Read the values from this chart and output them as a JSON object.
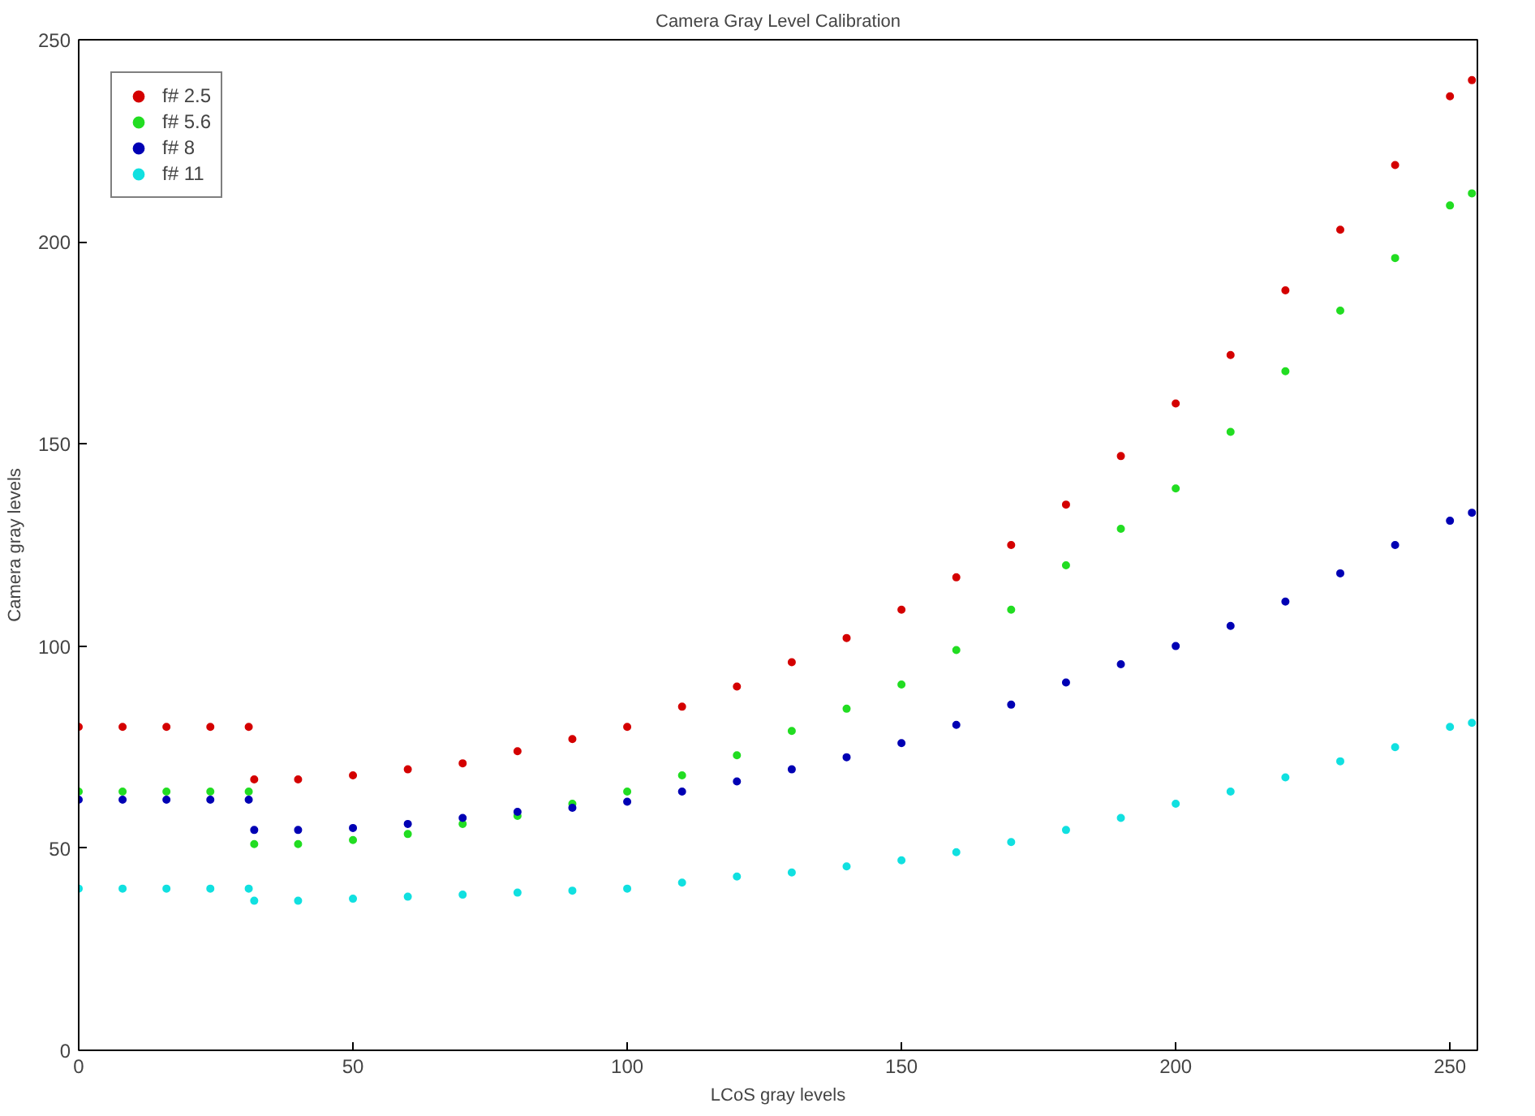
{
  "chart_data": {
    "type": "scatter",
    "title": "Camera Gray Level Calibration",
    "xlabel": "LCoS gray levels",
    "ylabel": "Camera gray levels",
    "x": [
      0,
      8,
      16,
      24,
      31,
      32,
      40,
      50,
      60,
      70,
      80,
      90,
      100,
      110,
      120,
      130,
      140,
      150,
      160,
      170,
      180,
      190,
      200,
      210,
      220,
      230,
      240,
      250,
      254
    ],
    "series": [
      {
        "name": "f# 2.5",
        "color": "#d40000",
        "values": [
          80,
          80,
          80,
          80,
          80,
          67,
          67,
          68,
          69.5,
          71,
          74,
          77,
          80,
          85,
          90,
          96,
          102,
          109,
          117,
          125,
          135,
          147,
          160,
          172,
          188,
          203,
          219,
          236,
          240
        ]
      },
      {
        "name": "f# 5.6",
        "color": "#22dd22",
        "values": [
          64,
          64,
          64,
          64,
          64,
          51,
          51,
          52,
          53.5,
          56,
          58,
          61,
          64,
          68,
          73,
          79,
          84.5,
          90.5,
          99,
          109,
          120,
          129,
          139,
          153,
          168,
          183,
          196,
          209,
          212
        ]
      },
      {
        "name": "f# 8",
        "color": "#0000b4",
        "values": [
          62,
          62,
          62,
          62,
          62,
          54.5,
          54.5,
          55,
          56,
          57.5,
          59,
          60,
          61.5,
          64,
          66.5,
          69.5,
          72.5,
          76,
          80.5,
          85.5,
          91,
          95.5,
          100,
          105,
          111,
          118,
          125,
          131,
          133
        ]
      },
      {
        "name": "f# 11",
        "color": "#11e0e0",
        "values": [
          40,
          40,
          40,
          40,
          40,
          37,
          37,
          37.5,
          38,
          38.5,
          39,
          39.5,
          40,
          41.5,
          43,
          44,
          45.5,
          47,
          49,
          51.5,
          54.5,
          57.5,
          61,
          64,
          67.5,
          71.5,
          75,
          80,
          81
        ]
      }
    ],
    "xlim": [
      0,
      255
    ],
    "ylim": [
      0,
      250
    ],
    "xticks": [
      0,
      50,
      100,
      150,
      200,
      250
    ],
    "yticks": [
      0,
      50,
      100,
      150,
      200,
      250
    ],
    "grid": false,
    "legend": "top left",
    "marker": "circle"
  }
}
